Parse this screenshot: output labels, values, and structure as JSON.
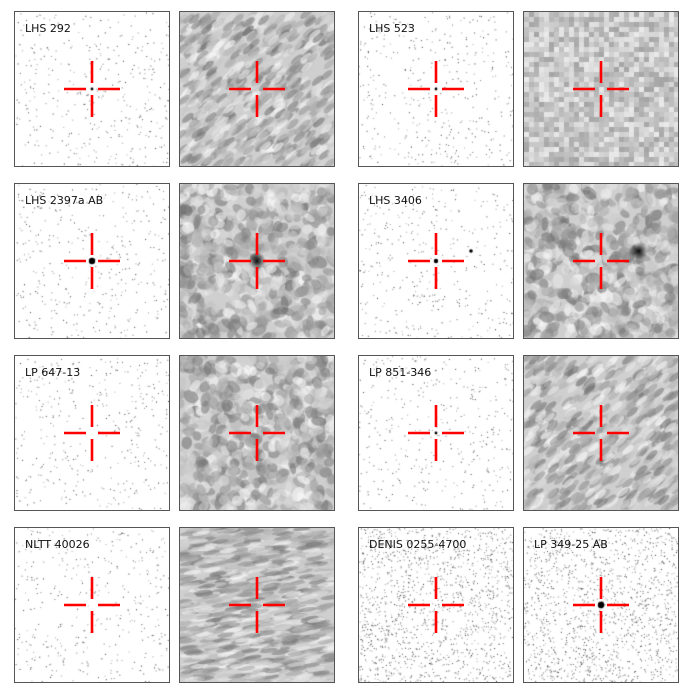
{
  "figure": {
    "crosshair_color": "#ff0000",
    "rows": [
      {
        "left": {
          "name": "LHS 292",
          "panels": [
            {
              "kind": "optical",
              "label": "LHS 292",
              "source": {
                "present": true,
                "strength": "faint"
              }
            },
            {
              "kind": "radio",
              "label": "",
              "texture": "streaky",
              "source": {
                "present": false
              }
            }
          ]
        },
        "right": {
          "name": "LHS 523",
          "panels": [
            {
              "kind": "optical",
              "label": "LHS 523",
              "source": {
                "present": true,
                "strength": "faint"
              }
            },
            {
              "kind": "radio",
              "label": "",
              "texture": "blocky",
              "source": {
                "present": false
              }
            }
          ]
        }
      },
      {
        "left": {
          "name": "LHS 2397a AB",
          "panels": [
            {
              "kind": "optical",
              "label": "LHS 2397a AB",
              "source": {
                "present": true,
                "strength": "strong"
              }
            },
            {
              "kind": "radio",
              "label": "",
              "texture": "mottled",
              "source": {
                "present": true,
                "strength": "strong"
              }
            }
          ]
        },
        "right": {
          "name": "LHS 3406",
          "panels": [
            {
              "kind": "optical",
              "label": "LHS 3406",
              "source": {
                "present": true,
                "strength": "medium",
                "offset_source": true
              }
            },
            {
              "kind": "radio",
              "label": "",
              "texture": "mottled",
              "source": {
                "present": true,
                "strength": "offset"
              }
            }
          ]
        }
      },
      {
        "left": {
          "name": "LP 647-13",
          "panels": [
            {
              "kind": "optical",
              "label": "LP 647-13",
              "source": {
                "present": false
              }
            },
            {
              "kind": "radio",
              "label": "",
              "texture": "mottled",
              "source": {
                "present": false
              }
            }
          ]
        },
        "right": {
          "name": "LP 851-346",
          "panels": [
            {
              "kind": "optical",
              "label": "LP 851-346",
              "source": {
                "present": true,
                "strength": "faint"
              }
            },
            {
              "kind": "radio",
              "label": "",
              "texture": "streaky",
              "source": {
                "present": false
              }
            }
          ]
        }
      },
      {
        "left": {
          "name": "NLTT 40026",
          "panels": [
            {
              "kind": "optical",
              "label": "NLTT 40026",
              "source": {
                "present": false
              }
            },
            {
              "kind": "radio",
              "label": "",
              "texture": "striped",
              "source": {
                "present": false
              }
            }
          ]
        },
        "right": {
          "name": "DENIS / LP",
          "panels": [
            {
              "kind": "optical",
              "label": "DENIS 0255-4700",
              "dense_noise": true,
              "source": {
                "present": false
              }
            },
            {
              "kind": "optical",
              "label": "LP 349-25 AB",
              "dense_noise": true,
              "source": {
                "present": true,
                "strength": "strong"
              }
            }
          ]
        }
      }
    ]
  }
}
